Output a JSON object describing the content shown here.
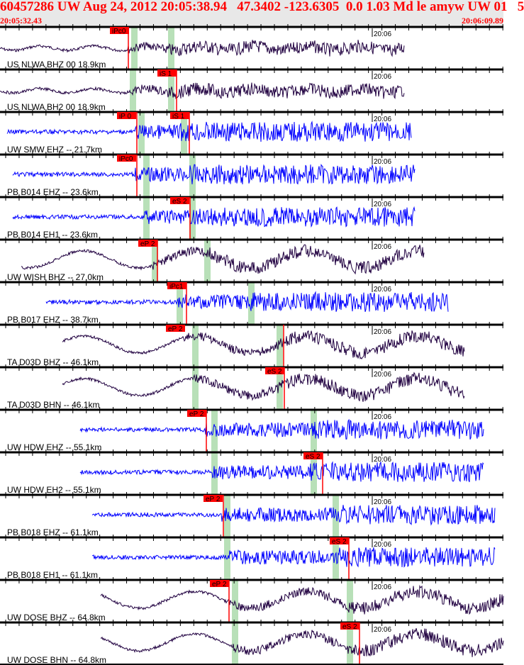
{
  "header": {
    "title": "60457286 UW Aug 24, 2012 20:05:38.94   47.3402 -123.6305  0.0 1.03 Md le amyw UW 01   5",
    "start_time": "20:05:32.43",
    "end_time": "20:06:09.89"
  },
  "time_marker": "20:06",
  "colors": {
    "short_period": "#0000ff",
    "broadband": "#200040",
    "pick": "#ff0000",
    "window": "#b8e0b8"
  },
  "traces": [
    {
      "label": "US NLWA BHZ 00 18.9km",
      "pick": "iPc0",
      "type": "broadband"
    },
    {
      "label": "US NLWA BH2 00 18.9km",
      "pick": "iS 1",
      "type": "broadband"
    },
    {
      "label": "UW SMW EHZ -- 21.7km",
      "pick": "iP 0",
      "pick2": "iS 1",
      "type": "short_period"
    },
    {
      "label": "PB B014 EHZ -- 23.6km",
      "pick": "iPc0",
      "type": "short_period"
    },
    {
      "label": "PB B014 EH1 -- 23.6km",
      "pick": "eS 2",
      "type": "short_period"
    },
    {
      "label": "UW WISH BHZ -- 27.0km",
      "pick": "eP 2",
      "type": "broadband"
    },
    {
      "label": "PB B017 EHZ -- 38.7km",
      "pick": "iPc1",
      "type": "short_period"
    },
    {
      "label": "TA D03D BHZ -- 46.1km",
      "pick": "eP 2",
      "type": "broadband"
    },
    {
      "label": "TA D03D BHN -- 46.1km",
      "pick": "eS 2",
      "type": "broadband"
    },
    {
      "label": "UW HDW EHZ -- 55.1km",
      "pick": "eP 2",
      "type": "short_period"
    },
    {
      "label": "UW HDW EH2 -- 55.1km",
      "pick": "eS 2",
      "type": "short_period"
    },
    {
      "label": "PB B018 EHZ -- 61.1km",
      "pick": "eP 2",
      "type": "short_period"
    },
    {
      "label": "PB B018 EH1 -- 61.1km",
      "pick": "eS 2",
      "type": "short_period"
    },
    {
      "label": "UW DOSE BHZ -- 64.8km",
      "pick": "eP 2",
      "type": "broadband"
    },
    {
      "label": "UW DOSE BHN -- 64.8km",
      "pick": "eS 2",
      "type": "broadband"
    }
  ]
}
